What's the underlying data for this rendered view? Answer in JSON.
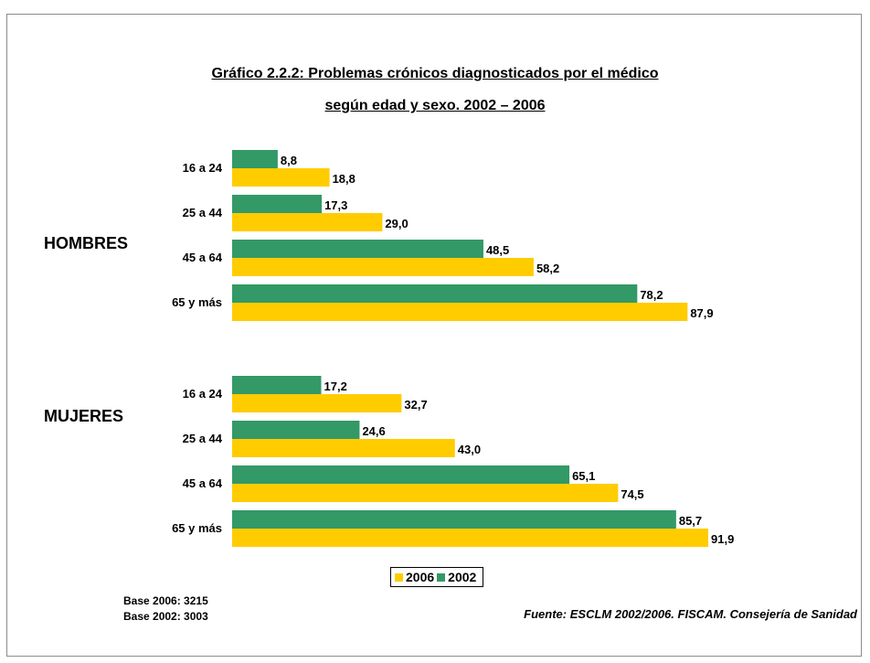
{
  "title_line1": "Gráfico 2.2.2: Problemas crónicos diagnosticados por el médico",
  "title_line2": "según edad y sexo. 2002 – 2006",
  "base_2006": "Base 2006: 3215",
  "base_2002": "Base 2002: 3003",
  "source": "Fuente: ESCLM 2002/2006. FISCAM. Consejería de Sanidad",
  "colors": {
    "2006": "#FFCC00",
    "2002": "#339966"
  },
  "chart_data": {
    "type": "bar",
    "orientation": "horizontal",
    "groups": [
      {
        "name": "HOMBRES",
        "categories": [
          "16 a 24",
          "25 a 44",
          "45 a 64",
          "65 y más"
        ],
        "series": [
          {
            "name": "2002",
            "values": [
              8.8,
              17.3,
              48.5,
              78.2
            ],
            "labels": [
              "8,8",
              "17,3",
              "48,5",
              "78,2"
            ]
          },
          {
            "name": "2006",
            "values": [
              18.8,
              29.0,
              58.2,
              87.9
            ],
            "labels": [
              "18,8",
              "29,0",
              "58,2",
              "87,9"
            ]
          }
        ]
      },
      {
        "name": "MUJERES",
        "categories": [
          "16 a 24",
          "25 a 44",
          "45 a 64",
          "65 y más"
        ],
        "series": [
          {
            "name": "2002",
            "values": [
              17.2,
              24.6,
              65.1,
              85.7
            ],
            "labels": [
              "17,2",
              "24,6",
              "65,1",
              "85,7"
            ]
          },
          {
            "name": "2006",
            "values": [
              32.7,
              43.0,
              74.5,
              91.9
            ],
            "labels": [
              "32,7",
              "43,0",
              "74,5",
              "91,9"
            ]
          }
        ]
      }
    ],
    "legend": [
      "2006",
      "2002"
    ],
    "legend_position": "bottom",
    "xlim": [
      0,
      100
    ],
    "grid": false
  }
}
